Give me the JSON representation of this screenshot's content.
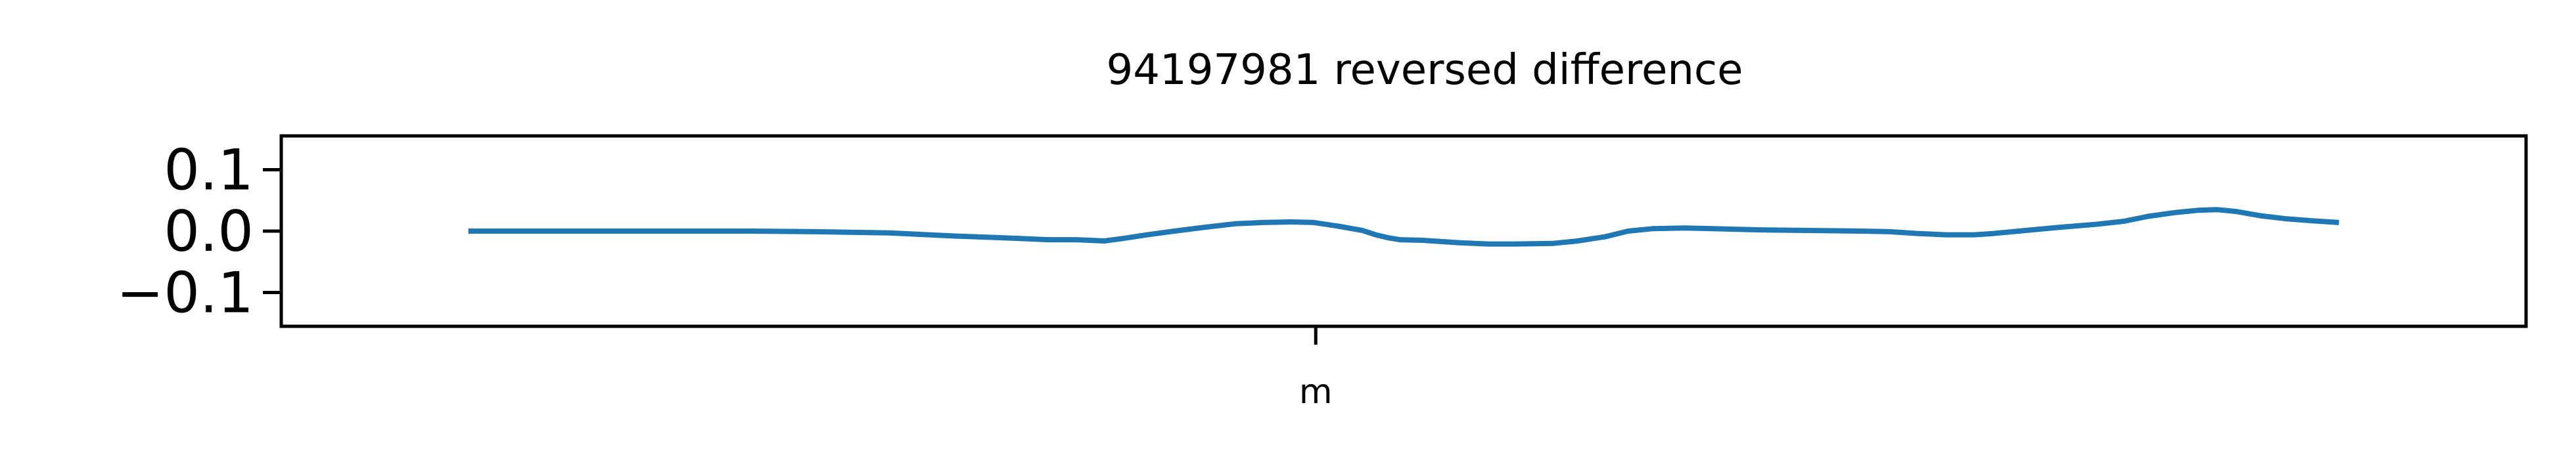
{
  "chart_data": {
    "type": "line",
    "title": "94197981 reversed difference",
    "xlabel": "",
    "ylabel": "",
    "x_ticks": [
      {
        "label": "m",
        "value": 0.453
      }
    ],
    "xlim": [
      -0.1,
      1.1
    ],
    "ylim": [
      -0.155,
      0.155
    ],
    "y_ticks": [
      {
        "label": "0.1",
        "value": 0.1
      },
      {
        "label": "0.0",
        "value": 0.0
      },
      {
        "label": "−0.1",
        "value": -0.1
      }
    ],
    "grid": false,
    "series": [
      {
        "name": "",
        "color": "#1f77b4",
        "points": [
          [
            0.0,
            0.0
          ],
          [
            0.06,
            0.0
          ],
          [
            0.11,
            0.0
          ],
          [
            0.15,
            0.0
          ],
          [
            0.185,
            -0.001
          ],
          [
            0.225,
            -0.003
          ],
          [
            0.26,
            -0.008
          ],
          [
            0.295,
            -0.012
          ],
          [
            0.31,
            -0.014
          ],
          [
            0.325,
            -0.014
          ],
          [
            0.34,
            -0.016
          ],
          [
            0.35,
            -0.012
          ],
          [
            0.363,
            -0.006
          ],
          [
            0.375,
            -0.001
          ],
          [
            0.393,
            0.006
          ],
          [
            0.41,
            0.012
          ],
          [
            0.425,
            0.014
          ],
          [
            0.44,
            0.015
          ],
          [
            0.452,
            0.014
          ],
          [
            0.465,
            0.008
          ],
          [
            0.478,
            0.001
          ],
          [
            0.485,
            -0.006
          ],
          [
            0.492,
            -0.011
          ],
          [
            0.498,
            -0.014
          ],
          [
            0.51,
            -0.015
          ],
          [
            0.53,
            -0.019
          ],
          [
            0.545,
            -0.021
          ],
          [
            0.56,
            -0.021
          ],
          [
            0.58,
            -0.02
          ],
          [
            0.593,
            -0.016
          ],
          [
            0.608,
            -0.009
          ],
          [
            0.62,
            0.0
          ],
          [
            0.633,
            0.004
          ],
          [
            0.65,
            0.005
          ],
          [
            0.665,
            0.004
          ],
          [
            0.69,
            0.002
          ],
          [
            0.72,
            0.001
          ],
          [
            0.745,
            0.0
          ],
          [
            0.76,
            -0.001
          ],
          [
            0.775,
            -0.004
          ],
          [
            0.79,
            -0.006
          ],
          [
            0.805,
            -0.006
          ],
          [
            0.815,
            -0.004
          ],
          [
            0.832,
            0.001
          ],
          [
            0.85,
            0.006
          ],
          [
            0.87,
            0.011
          ],
          [
            0.885,
            0.016
          ],
          [
            0.898,
            0.024
          ],
          [
            0.912,
            0.03
          ],
          [
            0.925,
            0.034
          ],
          [
            0.935,
            0.035
          ],
          [
            0.945,
            0.032
          ],
          [
            0.958,
            0.025
          ],
          [
            0.972,
            0.02
          ],
          [
            0.985,
            0.017
          ],
          [
            0.995,
            0.015
          ],
          [
            1.0,
            0.014
          ]
        ]
      }
    ]
  }
}
